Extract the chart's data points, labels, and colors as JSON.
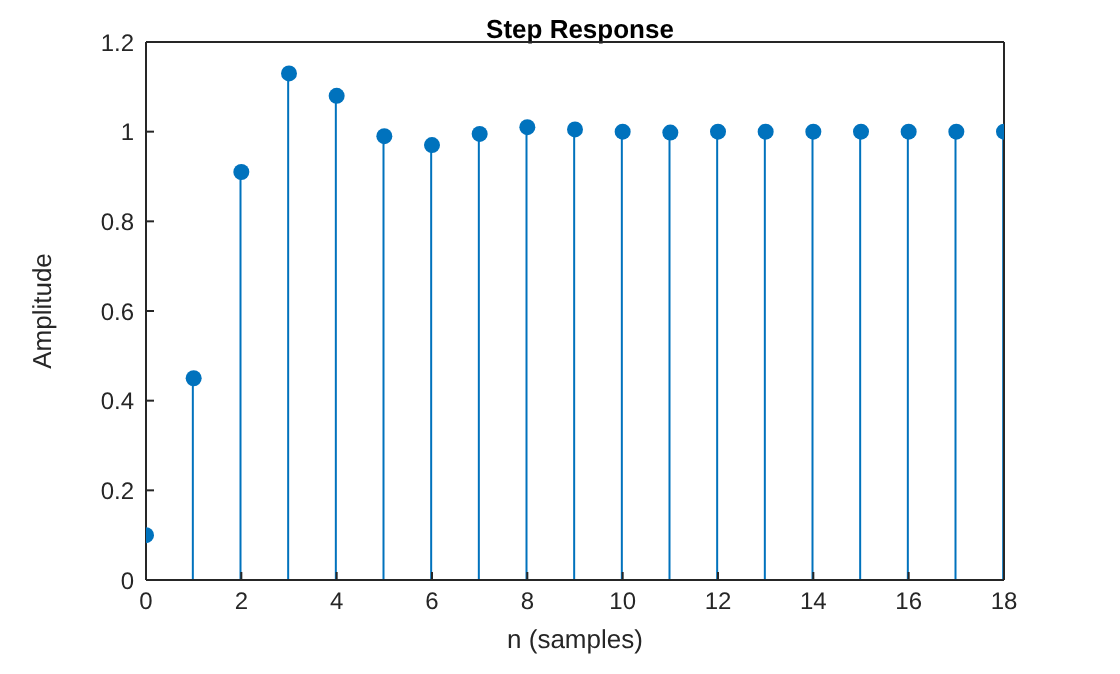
{
  "chart_data": {
    "type": "lollipop",
    "title": "Step Response",
    "xlabel": "n (samples)",
    "ylabel": "Amplitude",
    "x": [
      0,
      1,
      2,
      3,
      4,
      5,
      6,
      7,
      8,
      9,
      10,
      11,
      12,
      13,
      14,
      15,
      16,
      17,
      18
    ],
    "series": [
      {
        "color": "#0072bd",
        "values": [
          0.1,
          0.45,
          0.91,
          1.13,
          1.08,
          0.99,
          0.97,
          0.995,
          1.01,
          1.005,
          1.0,
          0.998,
          1.0,
          1.0,
          1.0,
          1.0,
          1.0,
          1.0,
          1.0
        ]
      }
    ],
    "xlim": [
      0,
      18
    ],
    "xticks": [
      0,
      2,
      4,
      6,
      8,
      10,
      12,
      14,
      16,
      18
    ],
    "ylim": [
      0,
      1.2
    ],
    "yticks": [
      0,
      0.2,
      0.4,
      0.6,
      0.8,
      1,
      1.2
    ],
    "grid": false,
    "marker": "circle"
  }
}
